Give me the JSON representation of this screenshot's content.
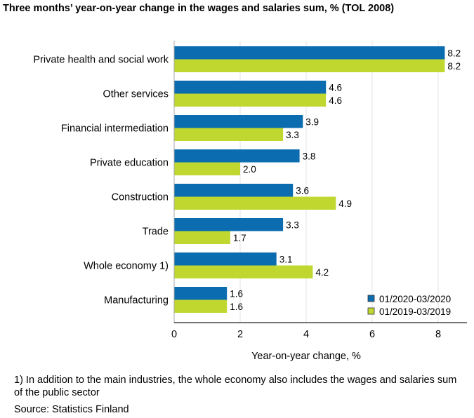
{
  "chart_data": {
    "type": "bar",
    "orientation": "horizontal",
    "title": "Three months’ year-on-year change in the wages and salaries sum, % (TOL 2008)",
    "xlabel": "Year-on-year change, %",
    "ylabel": "",
    "xlim": [
      0,
      8.9
    ],
    "xticks": [
      0,
      2,
      4,
      6,
      8
    ],
    "grid": true,
    "legend_position": "bottom-right",
    "categories": [
      "Private health and social work",
      "Other services",
      "Financial intermediation",
      "Private education",
      "Construction",
      "Trade",
      "Whole economy 1)",
      "Manufacturing"
    ],
    "series": [
      {
        "name": "01/2020-03/2020",
        "color": "#0b6db0",
        "values": [
          8.2,
          4.6,
          3.9,
          3.8,
          3.6,
          3.3,
          3.1,
          1.6
        ]
      },
      {
        "name": "01/2019-03/2019",
        "color": "#c0d730",
        "values": [
          8.2,
          4.6,
          3.3,
          2.0,
          4.9,
          1.7,
          4.2,
          1.6
        ]
      }
    ]
  },
  "footnote": "1) In addition to the main industries, the whole economy also includes the wages and salaries sum of the public sector",
  "source": "Source: Statistics Finland"
}
